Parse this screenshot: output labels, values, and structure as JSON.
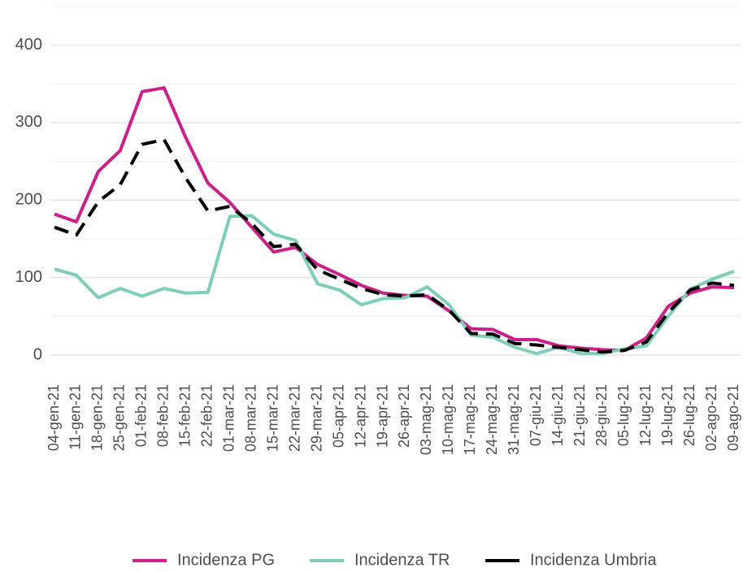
{
  "chart_data": {
    "type": "line",
    "categories": [
      "04-gen-21",
      "11-gen-21",
      "18-gen-21",
      "25-gen-21",
      "01-feb-21",
      "08-feb-21",
      "15-feb-21",
      "22-feb-21",
      "01-mar-21",
      "08-mar-21",
      "15-mar-21",
      "22-mar-21",
      "29-mar-21",
      "05-apr-21",
      "12-apr-21",
      "19-apr-21",
      "26-apr-21",
      "03-mag-21",
      "10-mag-21",
      "17-mag-21",
      "24-mag-21",
      "31-mag-21",
      "07-giu-21",
      "14-giu-21",
      "21-giu-21",
      "28-giu-21",
      "05-lug-21",
      "12-lug-21",
      "19-lug-21",
      "26-lug-21",
      "02-ago-21",
      "09-ago-21"
    ],
    "series": [
      {
        "name": "Incidenza PG",
        "color": "#cc1f8a",
        "dashed": false,
        "values": [
          182,
          172,
          237,
          264,
          340,
          345,
          280,
          222,
          197,
          165,
          133,
          139,
          117,
          104,
          90,
          80,
          77,
          76,
          57,
          34,
          33,
          20,
          20,
          12,
          9,
          7,
          6,
          22,
          63,
          80,
          88,
          87
        ]
      },
      {
        "name": "Incidenza TR",
        "color": "#7fcdbb",
        "dashed": false,
        "values": [
          111,
          103,
          74,
          86,
          76,
          86,
          80,
          81,
          179,
          180,
          156,
          148,
          92,
          84,
          65,
          73,
          74,
          88,
          65,
          26,
          23,
          10,
          2,
          10,
          2,
          2,
          8,
          12,
          50,
          85,
          98,
          108
        ]
      },
      {
        "name": "Incidenza Umbria",
        "color": "#000000",
        "dashed": true,
        "values": [
          165,
          155,
          198,
          220,
          272,
          278,
          228,
          186,
          192,
          170,
          140,
          143,
          110,
          98,
          86,
          78,
          76,
          78,
          58,
          28,
          27,
          15,
          13,
          10,
          7,
          4,
          6,
          17,
          55,
          84,
          93,
          90
        ]
      }
    ],
    "ylim": [
      -22,
      452
    ],
    "yticks": [
      0,
      100,
      200,
      300,
      400
    ],
    "minor_yticks": [
      50,
      150,
      250,
      350,
      450
    ],
    "grid": true,
    "legend": "bottom"
  }
}
